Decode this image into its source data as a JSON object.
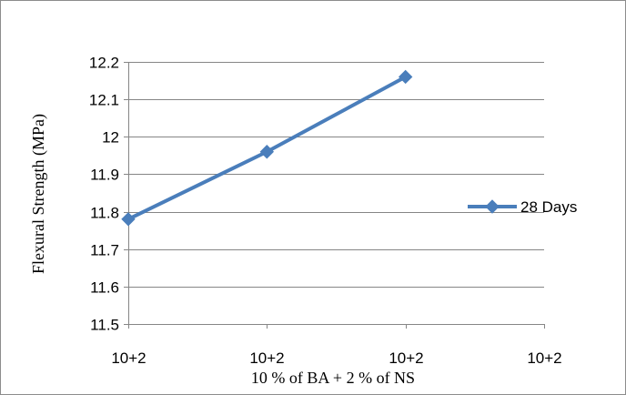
{
  "chart_data": {
    "type": "line",
    "title": "",
    "xlabel": "10 % of BA + 2 % of NS",
    "ylabel": "Flexural Strength (MPa)",
    "categories": [
      "10+2",
      "10+2",
      "10+2",
      "10+2"
    ],
    "series": [
      {
        "name": "28 Days",
        "values": [
          11.78,
          11.96,
          12.16,
          null
        ],
        "color": "#4a7ebb",
        "marker": "diamond"
      }
    ],
    "ylim": [
      11.5,
      12.2
    ],
    "yticks": [
      "11.5",
      "11.6",
      "11.7",
      "11.8",
      "11.9",
      "12",
      "12.1",
      "12.2"
    ],
    "grid": "horizontal",
    "legend": "right"
  }
}
